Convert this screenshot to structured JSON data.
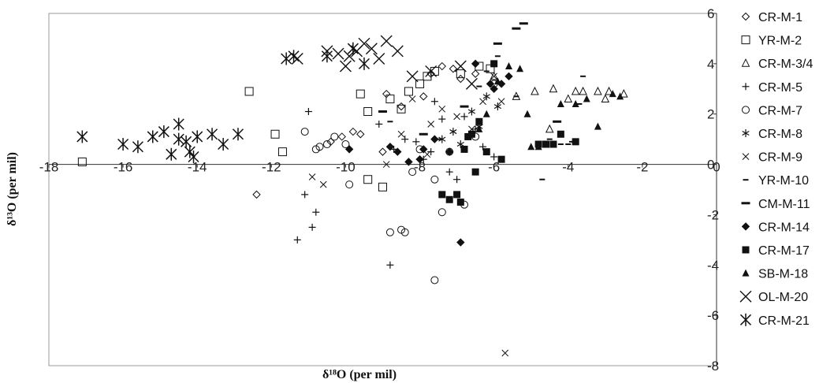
{
  "chart_data": {
    "type": "scatter",
    "xlabel": "δ¹⁸O (per mil)",
    "ylabel": "δ¹³O (per mil)",
    "xlim": [
      -18,
      0
    ],
    "ylim": [
      -8,
      6
    ],
    "x_ticks": [
      "-18",
      "-16",
      "-14",
      "-12",
      "-10",
      "-8",
      "-6",
      "-4",
      "-2",
      "0"
    ],
    "y_ticks": [
      "6",
      "4",
      "2",
      "0",
      "-2",
      "-4",
      "-6",
      "-8"
    ],
    "grid": false,
    "legend_position": "right",
    "series": [
      {
        "name": "CR-M-1",
        "marker": "diamond-open",
        "points": [
          [
            -12.4,
            -1.2
          ],
          [
            -10.4,
            0.9
          ],
          [
            -10.1,
            1.1
          ],
          [
            -9.8,
            1.3
          ],
          [
            -9.6,
            1.2
          ],
          [
            -9.0,
            0.5
          ],
          [
            -8.9,
            2.8
          ],
          [
            -8.5,
            2.3
          ],
          [
            -7.9,
            2.7
          ],
          [
            -7.7,
            3.6
          ],
          [
            -7.4,
            3.9
          ],
          [
            -7.1,
            3.8
          ],
          [
            -6.9,
            3.4
          ],
          [
            -6.5,
            3.6
          ]
        ]
      },
      {
        "name": "YR-M-2",
        "marker": "square-open",
        "points": [
          [
            -17.1,
            0.1
          ],
          [
            -12.6,
            2.9
          ],
          [
            -11.9,
            1.2
          ],
          [
            -11.7,
            0.5
          ],
          [
            -9.6,
            2.8
          ],
          [
            -9.4,
            -0.6
          ],
          [
            -9.0,
            -0.9
          ],
          [
            -8.8,
            2.6
          ],
          [
            -8.5,
            2.2
          ],
          [
            -8.3,
            2.9
          ],
          [
            -8.0,
            3.2
          ],
          [
            -7.8,
            3.5
          ],
          [
            -7.6,
            3.7
          ],
          [
            -6.9,
            3.6
          ],
          [
            -6.4,
            3.9
          ],
          [
            -6.1,
            3.8
          ],
          [
            -9.4,
            2.1
          ]
        ]
      },
      {
        "name": "CR-M-3/4",
        "marker": "triangle-open",
        "points": [
          [
            -6.0,
            3.5
          ],
          [
            -5.4,
            2.7
          ],
          [
            -4.9,
            2.9
          ],
          [
            -4.5,
            1.4
          ],
          [
            -4.4,
            3.0
          ],
          [
            -4.0,
            2.6
          ],
          [
            -3.8,
            2.9
          ],
          [
            -3.6,
            2.9
          ],
          [
            -3.2,
            2.9
          ],
          [
            -3.0,
            2.6
          ],
          [
            -2.9,
            2.9
          ],
          [
            -2.5,
            2.8
          ]
        ]
      },
      {
        "name": "CR-M-5",
        "marker": "plus",
        "points": [
          [
            -11.3,
            -3.0
          ],
          [
            -11.1,
            -1.2
          ],
          [
            -10.9,
            -2.5
          ],
          [
            -10.8,
            -1.9
          ],
          [
            -11.0,
            2.1
          ],
          [
            -9.1,
            1.6
          ],
          [
            -8.8,
            -4.0
          ],
          [
            -8.7,
            0.6
          ],
          [
            -8.4,
            1.0
          ],
          [
            -8.1,
            0.9
          ],
          [
            -7.9,
            0.2
          ],
          [
            -7.6,
            2.5
          ],
          [
            -7.4,
            1.8
          ],
          [
            -7.2,
            -0.3
          ],
          [
            -7.0,
            -0.6
          ],
          [
            -6.8,
            1.9
          ],
          [
            -6.5,
            1.4
          ],
          [
            -6.3,
            0.7
          ],
          [
            -6.0,
            0.3
          ],
          [
            -7.7,
            0.5
          ]
        ]
      },
      {
        "name": "CR-M-7",
        "marker": "circle-open",
        "points": [
          [
            -11.1,
            1.3
          ],
          [
            -10.8,
            0.6
          ],
          [
            -10.7,
            0.7
          ],
          [
            -10.5,
            0.8
          ],
          [
            -10.3,
            1.1
          ],
          [
            -10.0,
            0.8
          ],
          [
            -9.9,
            -0.8
          ],
          [
            -8.8,
            -2.7
          ],
          [
            -8.5,
            -2.6
          ],
          [
            -8.2,
            -0.3
          ],
          [
            -8.0,
            0.6
          ],
          [
            -7.6,
            -4.6
          ],
          [
            -7.4,
            -1.9
          ],
          [
            -7.2,
            0.5
          ],
          [
            -6.8,
            -1.6
          ],
          [
            -6.5,
            1.1
          ],
          [
            -6.0,
            3.2
          ],
          [
            -7.6,
            -0.6
          ],
          [
            -8.4,
            -2.7
          ]
        ]
      },
      {
        "name": "CR-M-8",
        "marker": "asterisk",
        "points": [
          [
            -7.4,
            1.0
          ],
          [
            -7.1,
            1.3
          ],
          [
            -6.9,
            0.8
          ],
          [
            -6.6,
            2.1
          ],
          [
            -6.4,
            1.5
          ],
          [
            -6.2,
            2.7
          ],
          [
            -5.9,
            2.3
          ]
        ]
      },
      {
        "name": "CR-M-9",
        "marker": "x-small",
        "points": [
          [
            -10.9,
            -0.5
          ],
          [
            -10.6,
            -0.8
          ],
          [
            -8.9,
            0.0
          ],
          [
            -8.5,
            1.2
          ],
          [
            -8.2,
            2.6
          ],
          [
            -7.7,
            1.6
          ],
          [
            -7.4,
            2.2
          ],
          [
            -7.0,
            1.9
          ],
          [
            -6.6,
            1.4
          ],
          [
            -6.3,
            2.5
          ],
          [
            -6.0,
            3.5
          ],
          [
            -5.8,
            2.5
          ],
          [
            -5.7,
            -7.5
          ],
          [
            -7.8,
            0.4
          ]
        ]
      },
      {
        "name": "YR-M-10",
        "marker": "dash-small",
        "points": [
          [
            -8.8,
            1.7
          ],
          [
            -7.5,
            1.0
          ],
          [
            -6.4,
            3.1
          ],
          [
            -6.2,
            3.7
          ],
          [
            -5.9,
            4.3
          ],
          [
            -5.4,
            2.7
          ],
          [
            -4.7,
            -0.6
          ],
          [
            -4.5,
            1.0
          ],
          [
            -4.2,
            0.8
          ],
          [
            -4.0,
            0.8
          ],
          [
            -3.9,
            0.9
          ],
          [
            -3.7,
            2.4
          ],
          [
            -3.6,
            3.5
          ]
        ]
      },
      {
        "name": "CM-M-11",
        "marker": "dash-bold",
        "points": [
          [
            -9.0,
            2.1
          ],
          [
            -7.9,
            1.2
          ],
          [
            -6.8,
            2.3
          ],
          [
            -5.9,
            4.8
          ],
          [
            -5.4,
            5.4
          ],
          [
            -5.2,
            5.6
          ],
          [
            -4.3,
            1.7
          ]
        ]
      },
      {
        "name": "CR-M-14",
        "marker": "diamond-filled",
        "points": [
          [
            -9.9,
            0.6
          ],
          [
            -8.8,
            0.7
          ],
          [
            -8.6,
            0.5
          ],
          [
            -8.3,
            0.1
          ],
          [
            -8.0,
            0.2
          ],
          [
            -7.9,
            0.6
          ],
          [
            -7.6,
            1.0
          ],
          [
            -7.2,
            0.5
          ],
          [
            -6.9,
            -3.1
          ],
          [
            -6.5,
            4.0
          ],
          [
            -6.1,
            3.2
          ],
          [
            -6.0,
            3.0
          ],
          [
            -5.8,
            3.2
          ],
          [
            -5.6,
            3.5
          ]
        ]
      },
      {
        "name": "CR-M-17",
        "marker": "square-filled",
        "points": [
          [
            -7.4,
            -1.2
          ],
          [
            -7.2,
            -1.4
          ],
          [
            -7.0,
            -1.2
          ],
          [
            -6.9,
            -1.5
          ],
          [
            -6.8,
            0.6
          ],
          [
            -6.7,
            1.1
          ],
          [
            -6.6,
            1.2
          ],
          [
            -6.5,
            -0.3
          ],
          [
            -6.4,
            1.7
          ],
          [
            -6.2,
            0.5
          ],
          [
            -6.0,
            4.0
          ],
          [
            -5.8,
            0.2
          ],
          [
            -4.8,
            0.8
          ],
          [
            -4.6,
            0.8
          ],
          [
            -4.4,
            0.8
          ],
          [
            -4.2,
            1.2
          ],
          [
            -3.8,
            0.9
          ]
        ]
      },
      {
        "name": "SB-M-18",
        "marker": "triangle-filled",
        "points": [
          [
            -6.4,
            1.4
          ],
          [
            -6.2,
            2.0
          ],
          [
            -5.9,
            3.3
          ],
          [
            -5.6,
            3.9
          ],
          [
            -5.3,
            3.8
          ],
          [
            -5.1,
            2.0
          ],
          [
            -5.0,
            0.7
          ],
          [
            -4.8,
            0.7
          ],
          [
            -4.2,
            2.4
          ],
          [
            -3.8,
            2.4
          ],
          [
            -3.5,
            2.6
          ],
          [
            -3.2,
            1.5
          ],
          [
            -2.8,
            2.8
          ],
          [
            -2.6,
            2.7
          ]
        ]
      },
      {
        "name": "OL-M-20",
        "marker": "x-large",
        "points": [
          [
            -11.3,
            4.2
          ],
          [
            -10.5,
            4.5
          ],
          [
            -10.2,
            4.4
          ],
          [
            -9.9,
            4.3
          ],
          [
            -9.7,
            4.5
          ],
          [
            -9.5,
            4.8
          ],
          [
            -9.3,
            4.6
          ],
          [
            -9.1,
            4.2
          ],
          [
            -8.9,
            4.9
          ],
          [
            -8.6,
            4.5
          ],
          [
            -8.2,
            3.5
          ],
          [
            -10.0,
            3.9
          ],
          [
            -7.7,
            3.7
          ],
          [
            -6.9,
            3.9
          ],
          [
            -6.6,
            3.2
          ]
        ]
      },
      {
        "name": "CR-M-21",
        "marker": "asterisk-large",
        "points": [
          [
            -17.1,
            1.1
          ],
          [
            -16.0,
            0.8
          ],
          [
            -15.6,
            0.7
          ],
          [
            -15.2,
            1.1
          ],
          [
            -14.9,
            1.3
          ],
          [
            -14.7,
            0.4
          ],
          [
            -14.5,
            1.0
          ],
          [
            -14.3,
            0.9
          ],
          [
            -14.2,
            0.5
          ],
          [
            -14.1,
            0.3
          ],
          [
            -14.0,
            1.1
          ],
          [
            -13.6,
            1.2
          ],
          [
            -13.3,
            0.8
          ],
          [
            -12.9,
            1.2
          ],
          [
            -11.4,
            4.3
          ],
          [
            -11.6,
            4.2
          ],
          [
            -10.5,
            4.3
          ],
          [
            -9.8,
            4.6
          ],
          [
            -9.5,
            4.0
          ],
          [
            -14.5,
            1.6
          ]
        ]
      }
    ]
  }
}
